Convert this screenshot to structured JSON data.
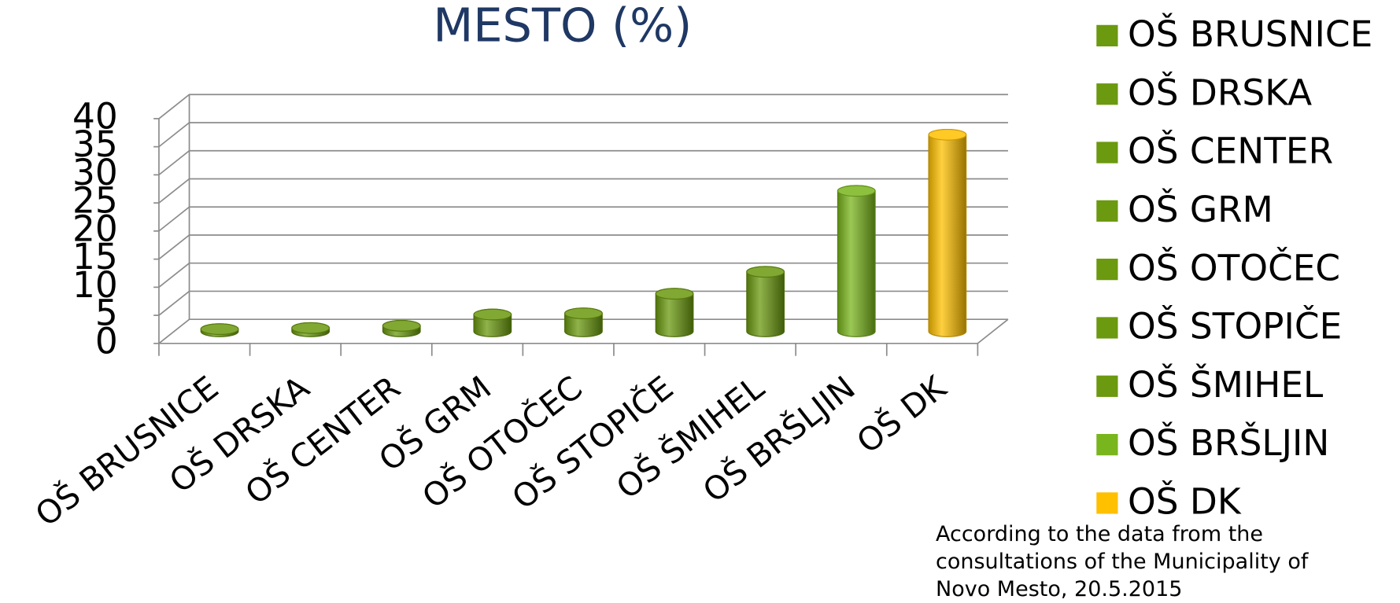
{
  "chart_data": {
    "type": "bar3d",
    "title": "MESTO (%)",
    "categories": [
      "OŠ BRUSNICE",
      "OŠ DRSKA",
      "OŠ CENTER",
      "OŠ GRM",
      "OŠ OTOČEC",
      "OŠ STOPIČE",
      "OŠ ŠMIHEL",
      "OŠ BRŠLJIN",
      "OŠ DK"
    ],
    "values": [
      0.4,
      0.6,
      1,
      3,
      3.2,
      6.7,
      10.6,
      25,
      35
    ],
    "colors": [
      "#6b990f",
      "#6b990f",
      "#6b990f",
      "#6b990f",
      "#6b990f",
      "#6b990f",
      "#6b990f",
      "#79b51c",
      "#ffc000"
    ],
    "ylim": [
      0,
      40
    ],
    "yticks": [
      0,
      5,
      10,
      15,
      20,
      25,
      30,
      35,
      40
    ],
    "grid": true,
    "legend": "right",
    "note": [
      "According to the data from the",
      "consultations of the Municipality of",
      "Novo Mesto, 20.5.2015"
    ]
  }
}
